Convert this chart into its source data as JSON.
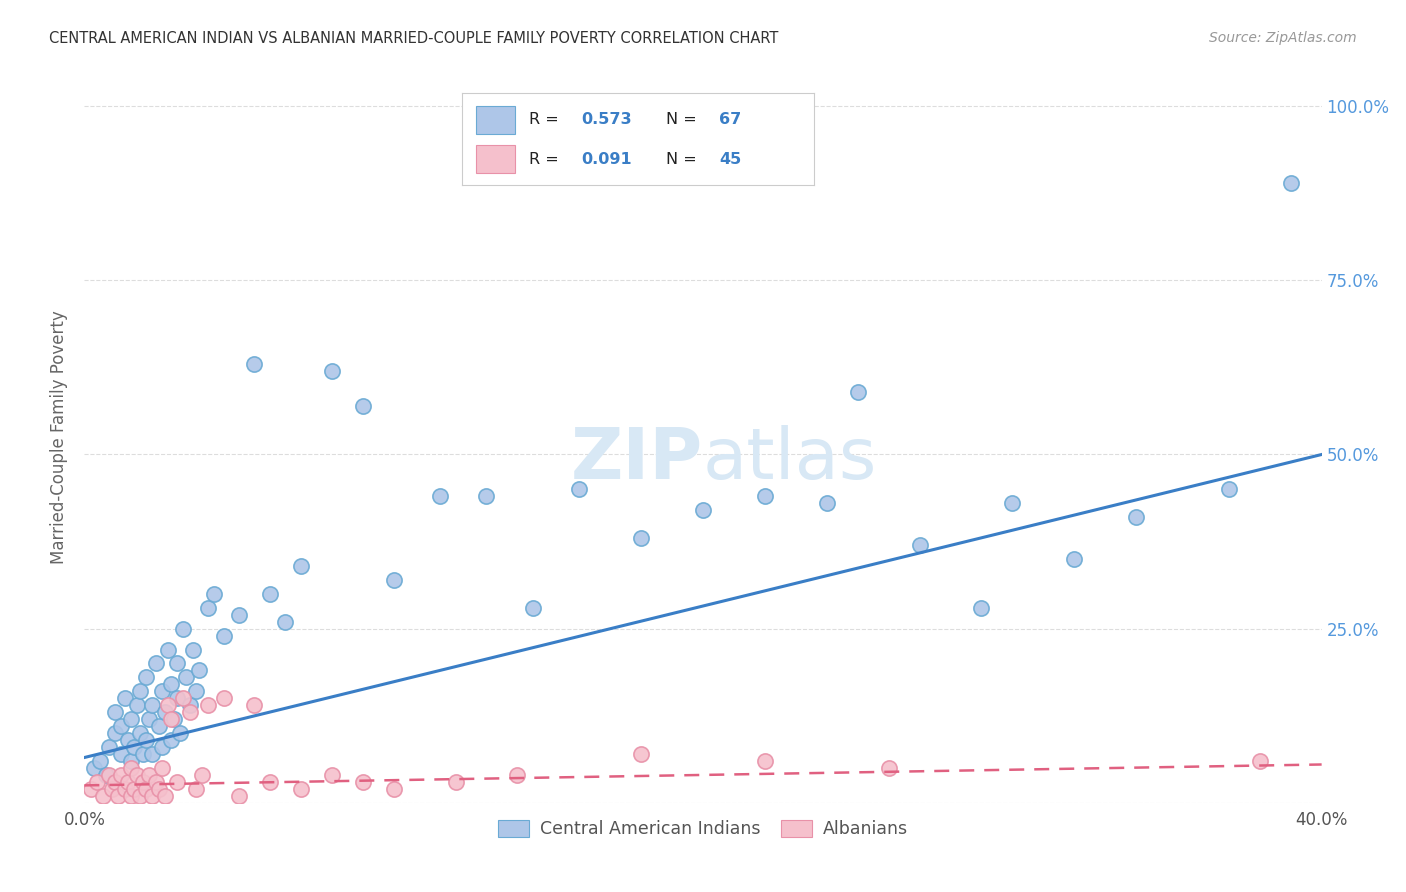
{
  "title": "CENTRAL AMERICAN INDIAN VS ALBANIAN MARRIED-COUPLE FAMILY POVERTY CORRELATION CHART",
  "source": "Source: ZipAtlas.com",
  "ylabel": "Married-Couple Family Poverty",
  "xmin": 0.0,
  "xmax": 0.4,
  "ymin": 0.0,
  "ymax": 1.05,
  "ytick_vals": [
    0.0,
    0.25,
    0.5,
    0.75,
    1.0
  ],
  "xtick_vals": [
    0.0,
    0.05,
    0.1,
    0.15,
    0.2,
    0.25,
    0.3,
    0.35,
    0.4
  ],
  "legend_label1": "Central American Indians",
  "legend_label2": "Albanians",
  "blue_color": "#AEC6E8",
  "blue_edge_color": "#6AAAD4",
  "pink_color": "#F5C0CC",
  "pink_edge_color": "#E891A8",
  "blue_line_color": "#3A7EC6",
  "pink_line_color": "#E06080",
  "title_color": "#333333",
  "source_color": "#999999",
  "axis_label_color": "#666666",
  "right_tick_color": "#5599DD",
  "watermark_color": "#D8E8F5",
  "blue_scatter_x": [
    0.003,
    0.005,
    0.007,
    0.008,
    0.01,
    0.01,
    0.012,
    0.012,
    0.013,
    0.014,
    0.015,
    0.015,
    0.016,
    0.017,
    0.018,
    0.018,
    0.019,
    0.02,
    0.02,
    0.021,
    0.022,
    0.022,
    0.023,
    0.024,
    0.025,
    0.025,
    0.026,
    0.027,
    0.028,
    0.028,
    0.029,
    0.03,
    0.03,
    0.031,
    0.032,
    0.033,
    0.034,
    0.035,
    0.036,
    0.037,
    0.04,
    0.042,
    0.045,
    0.05,
    0.055,
    0.06,
    0.065,
    0.07,
    0.08,
    0.09,
    0.1,
    0.115,
    0.13,
    0.145,
    0.16,
    0.18,
    0.2,
    0.22,
    0.24,
    0.25,
    0.27,
    0.29,
    0.3,
    0.32,
    0.34,
    0.37,
    0.39
  ],
  "blue_scatter_y": [
    0.05,
    0.06,
    0.04,
    0.08,
    0.1,
    0.13,
    0.07,
    0.11,
    0.15,
    0.09,
    0.06,
    0.12,
    0.08,
    0.14,
    0.1,
    0.16,
    0.07,
    0.09,
    0.18,
    0.12,
    0.07,
    0.14,
    0.2,
    0.11,
    0.08,
    0.16,
    0.13,
    0.22,
    0.09,
    0.17,
    0.12,
    0.15,
    0.2,
    0.1,
    0.25,
    0.18,
    0.14,
    0.22,
    0.16,
    0.19,
    0.28,
    0.3,
    0.24,
    0.27,
    0.63,
    0.3,
    0.26,
    0.34,
    0.62,
    0.57,
    0.32,
    0.44,
    0.44,
    0.28,
    0.45,
    0.38,
    0.42,
    0.44,
    0.43,
    0.59,
    0.37,
    0.28,
    0.43,
    0.35,
    0.41,
    0.45,
    0.89
  ],
  "pink_scatter_x": [
    0.002,
    0.004,
    0.006,
    0.008,
    0.009,
    0.01,
    0.011,
    0.012,
    0.013,
    0.014,
    0.015,
    0.015,
    0.016,
    0.017,
    0.018,
    0.019,
    0.02,
    0.021,
    0.022,
    0.023,
    0.024,
    0.025,
    0.026,
    0.027,
    0.028,
    0.03,
    0.032,
    0.034,
    0.036,
    0.038,
    0.04,
    0.045,
    0.05,
    0.055,
    0.06,
    0.07,
    0.08,
    0.09,
    0.1,
    0.12,
    0.14,
    0.18,
    0.22,
    0.26,
    0.38
  ],
  "pink_scatter_y": [
    0.02,
    0.03,
    0.01,
    0.04,
    0.02,
    0.03,
    0.01,
    0.04,
    0.02,
    0.03,
    0.01,
    0.05,
    0.02,
    0.04,
    0.01,
    0.03,
    0.02,
    0.04,
    0.01,
    0.03,
    0.02,
    0.05,
    0.01,
    0.14,
    0.12,
    0.03,
    0.15,
    0.13,
    0.02,
    0.04,
    0.14,
    0.15,
    0.01,
    0.14,
    0.03,
    0.02,
    0.04,
    0.03,
    0.02,
    0.03,
    0.04,
    0.07,
    0.06,
    0.05,
    0.06
  ],
  "blue_line_x": [
    0.0,
    0.4
  ],
  "blue_line_y": [
    0.065,
    0.5
  ],
  "pink_line_x": [
    0.0,
    0.4
  ],
  "pink_line_y": [
    0.025,
    0.055
  ],
  "background_color": "#FFFFFF",
  "grid_color": "#DDDDDD"
}
